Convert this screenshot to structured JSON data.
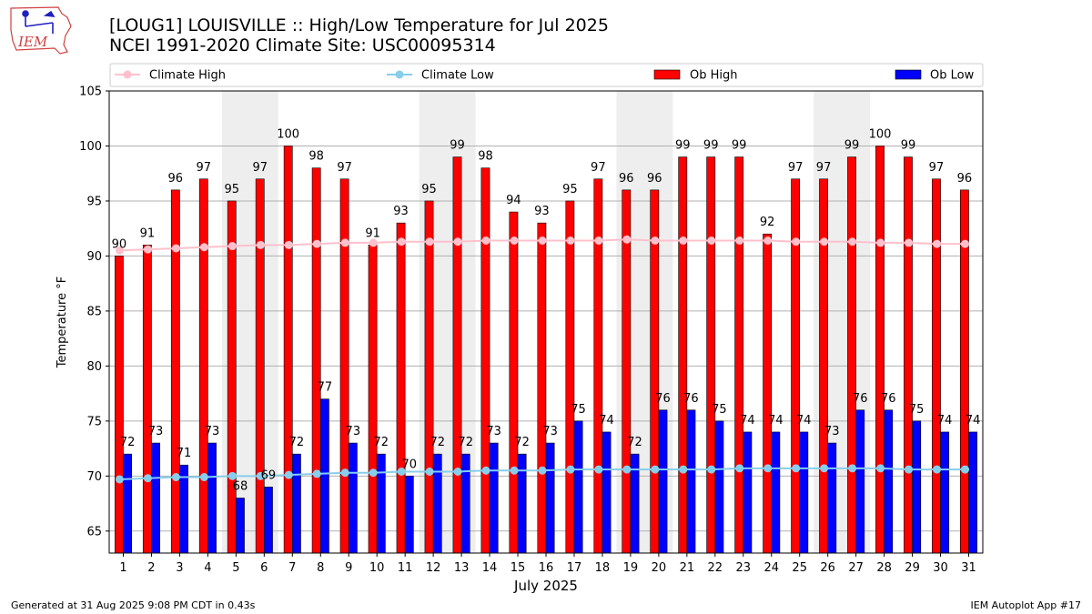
{
  "title_line1": "[LOUG1] LOUISVILLE :: High/Low Temperature for Jul 2025",
  "title_line2": "NCEI 1991-2020 Climate Site: USC00095314",
  "logo_text": "IEM",
  "footer_left": "Generated at 31 Aug 2025 9:08 PM CDT in 0.43s",
  "footer_right": "IEM Autoplot App #17",
  "colors": {
    "ob_high": "#ff0000",
    "ob_low": "#0000ff",
    "climate_high": "#ffc0cb",
    "climate_low": "#87ceeb",
    "weekend_band": "#eeeeee",
    "grid": "#b0b0b0"
  },
  "chart_data": {
    "type": "bar",
    "xlabel": "July 2025",
    "ylabel": "Temperature °F",
    "ylim": [
      63,
      105
    ],
    "yticks": [
      65,
      70,
      75,
      80,
      85,
      90,
      95,
      100,
      105
    ],
    "grid": "horizontal",
    "legend_position": "top",
    "categories": [
      1,
      2,
      3,
      4,
      5,
      6,
      7,
      8,
      9,
      10,
      11,
      12,
      13,
      14,
      15,
      16,
      17,
      18,
      19,
      20,
      21,
      22,
      23,
      24,
      25,
      26,
      27,
      28,
      29,
      30,
      31
    ],
    "weekend_bands": [
      [
        5,
        6
      ],
      [
        12,
        13
      ],
      [
        19,
        20
      ],
      [
        26,
        27
      ]
    ],
    "series": [
      {
        "name": "Climate High",
        "kind": "line",
        "values": [
          90.5,
          90.6,
          90.7,
          90.8,
          90.9,
          91.0,
          91.0,
          91.1,
          91.2,
          91.2,
          91.3,
          91.3,
          91.3,
          91.4,
          91.4,
          91.4,
          91.4,
          91.4,
          91.5,
          91.4,
          91.4,
          91.4,
          91.4,
          91.4,
          91.3,
          91.3,
          91.3,
          91.2,
          91.2,
          91.1,
          91.1
        ]
      },
      {
        "name": "Climate Low",
        "kind": "line",
        "values": [
          69.7,
          69.8,
          69.9,
          69.9,
          70.0,
          70.0,
          70.1,
          70.2,
          70.3,
          70.3,
          70.4,
          70.4,
          70.4,
          70.5,
          70.5,
          70.5,
          70.6,
          70.6,
          70.6,
          70.6,
          70.6,
          70.6,
          70.7,
          70.7,
          70.7,
          70.7,
          70.7,
          70.7,
          70.6,
          70.6,
          70.6
        ]
      },
      {
        "name": "Ob High",
        "kind": "bar",
        "values": [
          90,
          91,
          96,
          97,
          95,
          97,
          100,
          98,
          97,
          91,
          93,
          95,
          99,
          98,
          94,
          93,
          95,
          97,
          96,
          96,
          99,
          99,
          99,
          92,
          97,
          97,
          99,
          100,
          99,
          97,
          96
        ]
      },
      {
        "name": "Ob Low",
        "kind": "bar",
        "values": [
          72,
          73,
          71,
          73,
          68,
          69,
          72,
          77,
          73,
          72,
          70,
          72,
          72,
          73,
          72,
          73,
          75,
          74,
          72,
          76,
          76,
          75,
          74,
          74,
          74,
          73,
          76,
          76,
          75,
          74,
          74
        ]
      }
    ]
  }
}
